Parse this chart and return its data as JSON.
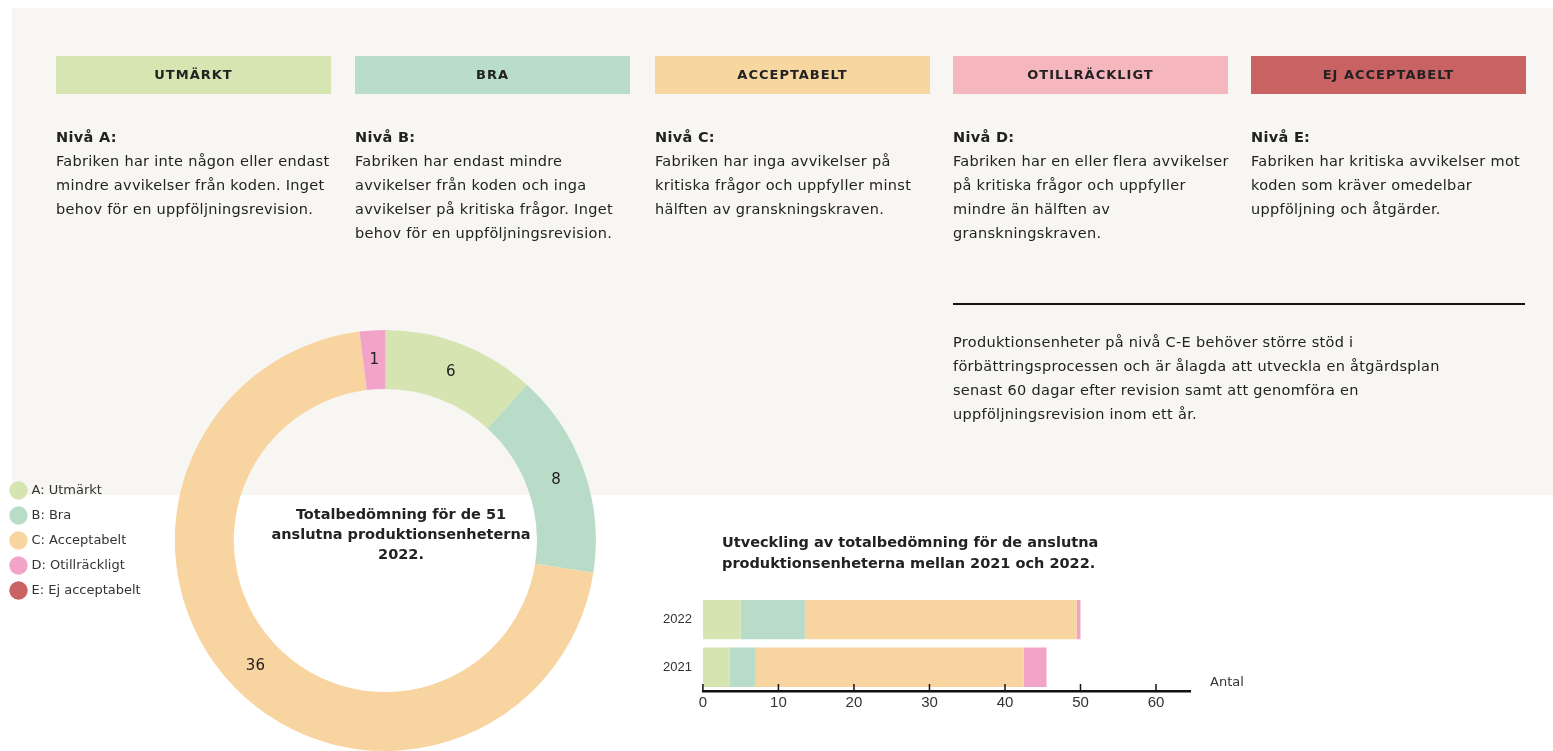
{
  "chart_data": [
    {
      "type": "other",
      "annotations": [
        "UTMÄRKT",
        "BRA",
        "ACCEPTABELT",
        "OTILLRÄCKLIGT",
        "EJ ACCEPTABELT",
        "Nivå A:",
        "Nivå B:",
        "Nivå C:",
        "Nivå D:",
        "Nivå E:",
        "Fabriken har inte någon eller endast mindre avvikelser från koden. Inget behov för en uppföljningsrevision.",
        "Fabriken har endast mindre avvikelser från koden och inga avvikelser på kritiska frågor. Inget behov för en uppföljningsrevision.",
        "Fabriken har inga avvikelser på kritiska frågor och uppfyller minst hälften av granskningskraven.",
        "Fabriken har en eller flera avvikelser på kritiska frågor och uppfyller mindre än hälften av granskningskraven.",
        "Fabriken har kritiska avvikelser mot koden som kräver omedelbar uppföljning och åtgärder.",
        "Produktionsenheter på nivå C-E behöver större stöd i förbättringsprocessen och är ålagda att utveckla en åtgärdsplan senast 60 dagar efter revision samt att genomföra en uppföljningsrevision inom ett år."
      ]
    },
    {
      "type": "donut",
      "title": "Totalbedömning för de 51 anslutna produktionsenheterna 2022.",
      "categories": [
        "A: Utmärkt",
        "B: Bra",
        "C: Acceptabelt",
        "D: Otillräckligt",
        "E: Ej acceptabelt"
      ],
      "values": [
        6,
        8,
        36,
        1,
        0
      ],
      "colors": [
        "#d5e4b0",
        "#b8dcc7",
        "#f8d5a0",
        "#f2a3c8",
        "#c96262"
      ],
      "data_labels": true,
      "legend": "left"
    },
    {
      "type": "bar",
      "orientation": "horizontal",
      "stacked": true,
      "title": "Utveckling av totalbedömning för de anslutna produktionsenheterna mellan 2021 och 2022.",
      "xlabel": "Antal",
      "categories": [
        "2022",
        "2021"
      ],
      "xlim": [
        0,
        64.5
      ],
      "xticks": [
        0,
        10,
        20,
        30,
        40,
        50,
        60
      ],
      "grid": false,
      "legend": false,
      "series": [
        {
          "color": "#d5e4b0",
          "values": [
            5,
            3.5
          ]
        },
        {
          "color": "#b8dcc7",
          "values": [
            8.5,
            3.5
          ]
        },
        {
          "color": "#f8d5a0",
          "values": [
            36,
            35.5
          ]
        },
        {
          "color": "#f2a3c8",
          "values": [
            0.5,
            3
          ]
        }
      ]
    }
  ]
}
